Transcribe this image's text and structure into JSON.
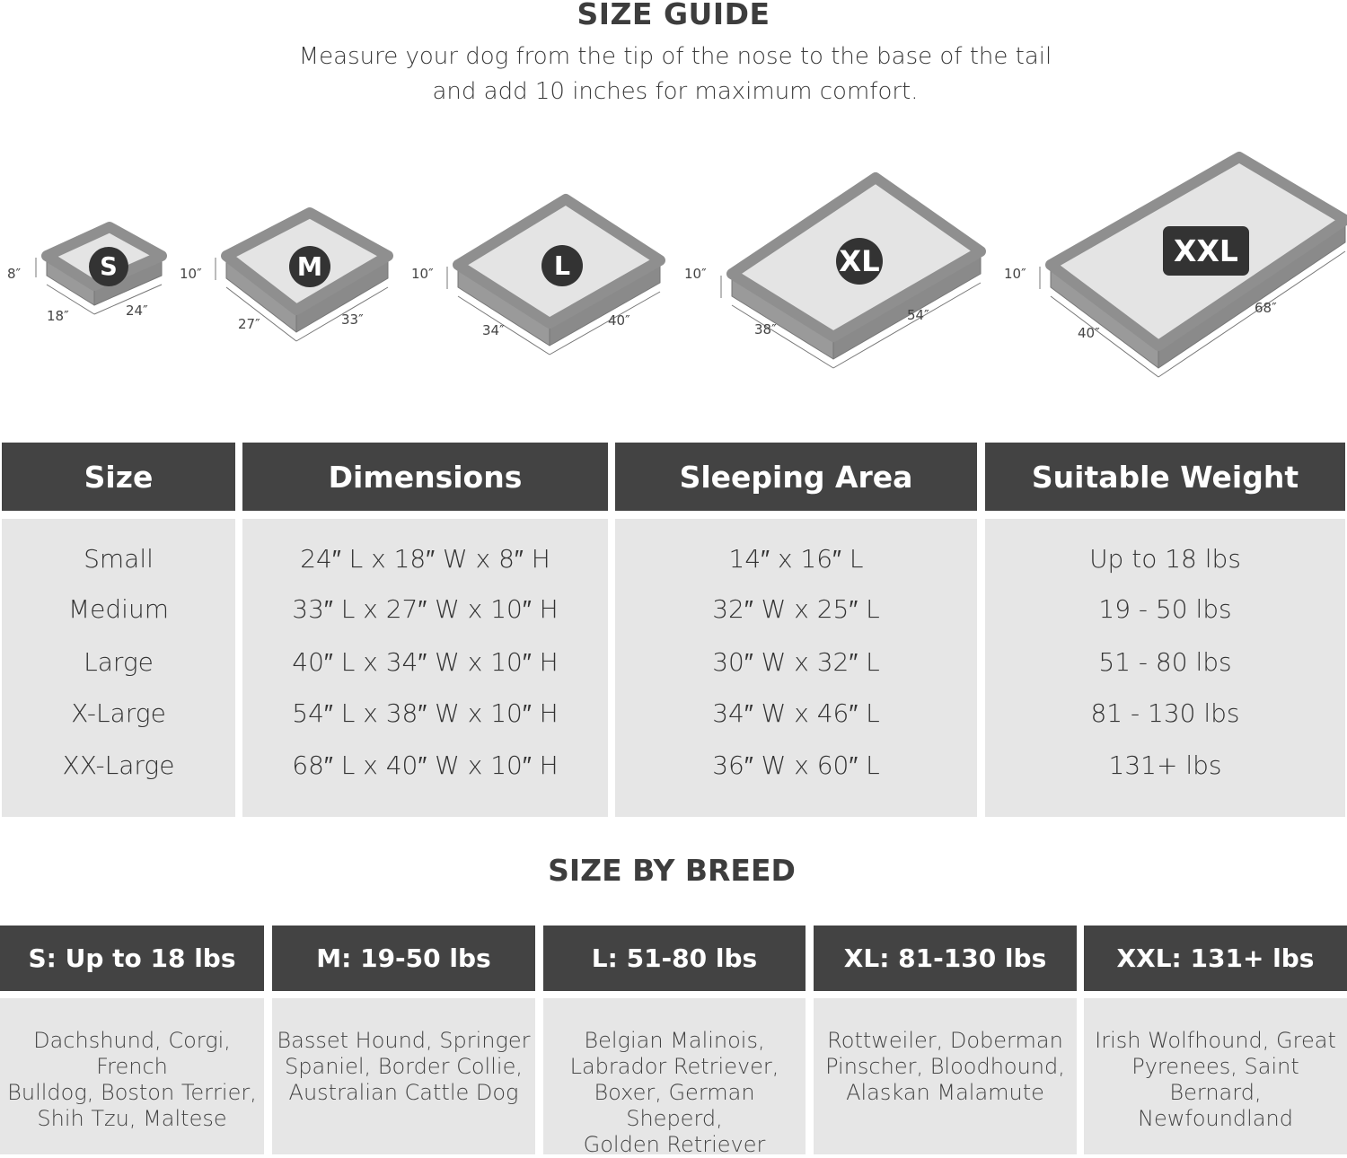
{
  "title": "SIZE GUIDE",
  "subtitle_lines": [
    "Measure your dog from the tip of the nose to the base of the tail",
    "and add 10 inches for maximum comfort."
  ],
  "beds": [
    {
      "badge": "S",
      "height": "8″",
      "width": "18″",
      "length": "24″"
    },
    {
      "badge": "M",
      "height": "10″",
      "width": "27″",
      "length": "33″"
    },
    {
      "badge": "L",
      "height": "10″",
      "width": "34″",
      "length": "40″"
    },
    {
      "badge": "XL",
      "height": "10″",
      "width": "38″",
      "length": "54″"
    },
    {
      "badge": "XXL",
      "height": "10″",
      "width": "40″",
      "length": "68″"
    }
  ],
  "size_table": {
    "headers": [
      "Size",
      "Dimensions",
      "Sleeping Area",
      "Suitable Weight"
    ],
    "sizes": [
      "Small",
      "Medium",
      "Large",
      "X-Large",
      "XX-Large"
    ],
    "dimensions": [
      "24″ L x 18″ W x 8″ H",
      "33″ L x 27″ W x 10″ H",
      "40″ L x 34″ W x 10″ H",
      "54″ L x 38″ W x 10″ H",
      "68″ L x 40″ W x 10″ H"
    ],
    "sleeping_area": [
      "14″ x 16″ L",
      "32″ W x 25″ L",
      "30″ W x 32″ L",
      "34″ W x 46″ L",
      "36″ W x 60″ L"
    ],
    "weight": [
      "Up to 18 lbs",
      "19 - 50 lbs",
      "51 - 80 lbs",
      "81 - 130 lbs",
      "131+ lbs"
    ]
  },
  "breed_title": "SIZE BY BREED",
  "breeds": [
    {
      "header": "S: Up to 18 lbs",
      "lines": [
        "Dachshund, Corgi, French",
        "Bulldog, Boston Terrier,",
        "Shih Tzu, Maltese"
      ]
    },
    {
      "header": "M: 19-50 lbs",
      "lines": [
        "Basset Hound, Springer",
        "Spaniel, Border Collie,",
        "Australian Cattle Dog"
      ]
    },
    {
      "header": "L: 51-80 lbs",
      "lines": [
        "Belgian Malinois,",
        "Labrador Retriever,",
        "Boxer, German Sheperd,",
        "Golden Retriever"
      ]
    },
    {
      "header": "XL: 81-130 lbs",
      "lines": [
        "Rottweiler, Doberman",
        "Pinscher, Bloodhound,",
        "Alaskan Malamute"
      ]
    },
    {
      "header": "XXL: 131+ lbs",
      "lines": [
        "Irish Wolfhound, Great",
        "Pyrenees, Saint Bernard,",
        "Newfoundland"
      ]
    }
  ],
  "colors": {
    "header_bg": "#434343",
    "cell_bg": "#e6e6e6",
    "bed_frame": "#8f8f8f",
    "bed_top": "#e4e4e4"
  }
}
